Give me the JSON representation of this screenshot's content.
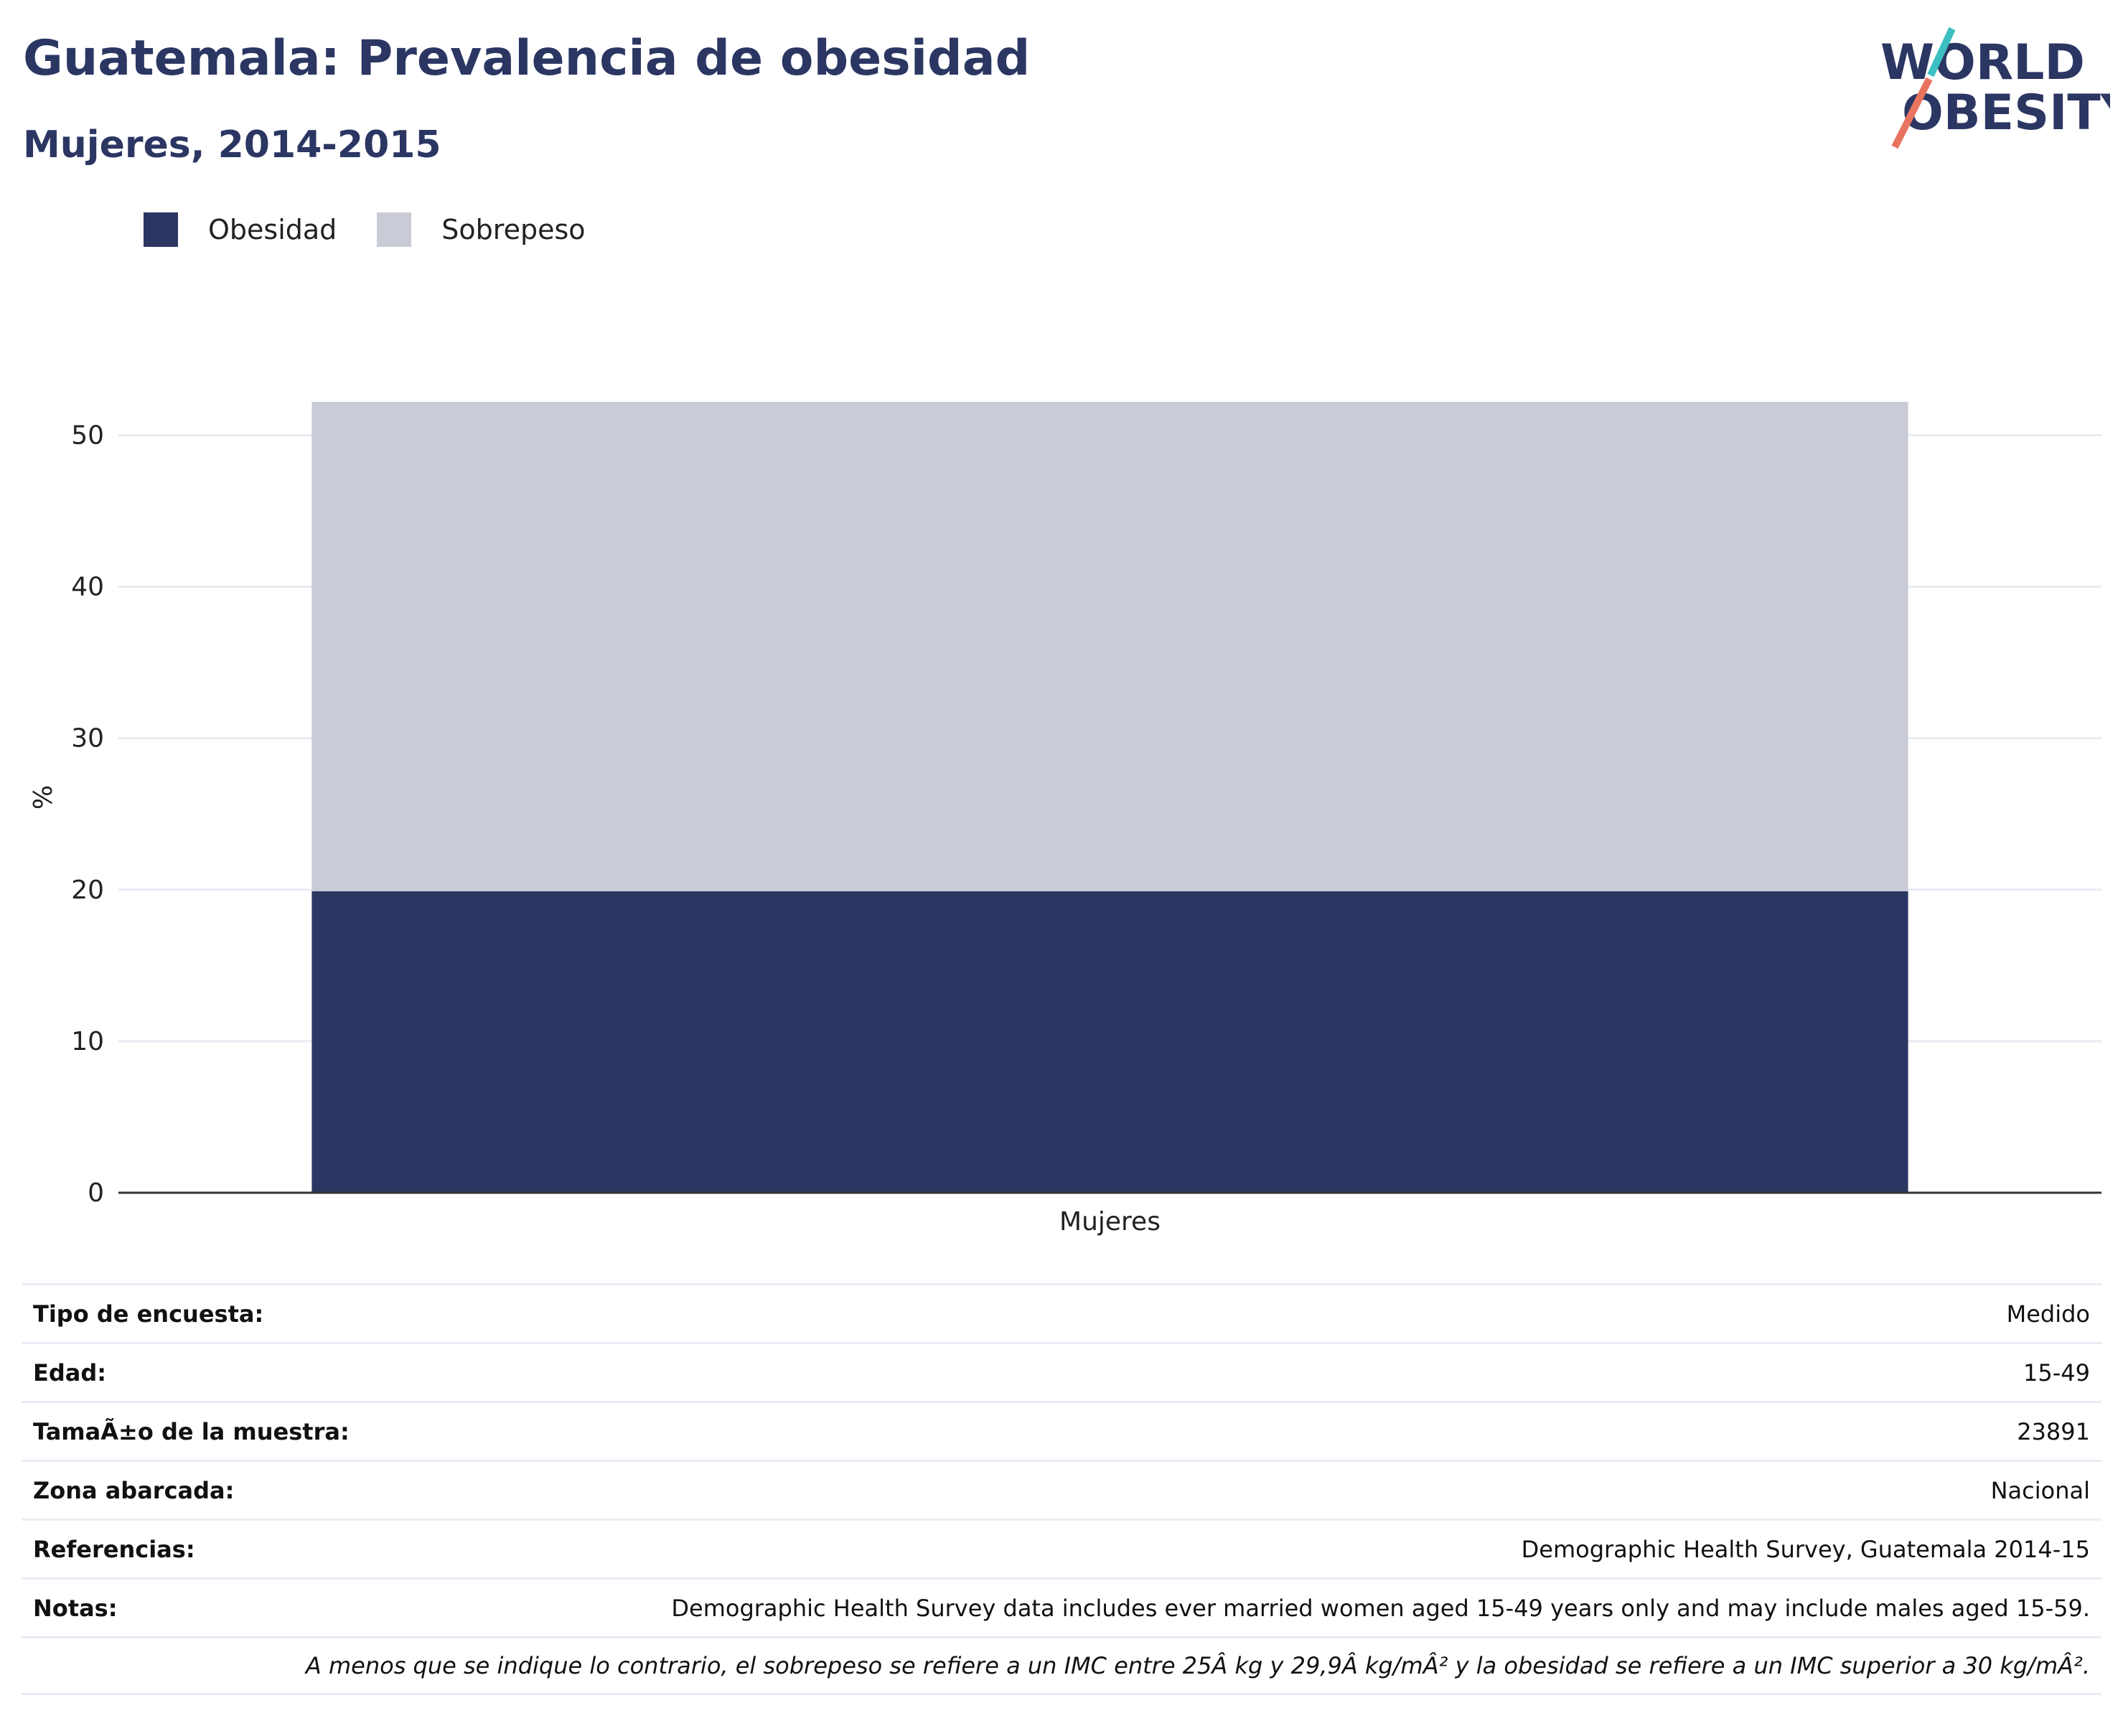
{
  "header": {
    "title": "Guatemala: Prevalencia de obesidad",
    "subtitle": "Mujeres, 2014-2015"
  },
  "logo": {
    "line1": "WORLD",
    "line2": "OBESITY",
    "icon": "world-obesity-logo"
  },
  "colors": {
    "obesidad": "#2b3663",
    "sobrepeso": "#c9ccd7",
    "title": "#2b3663",
    "grid": "#e9ecf2"
  },
  "chart_data": {
    "type": "bar",
    "stacked": true,
    "categories": [
      "Mujeres"
    ],
    "series": [
      {
        "name": "Obesidad",
        "values": [
          19.9
        ]
      },
      {
        "name": "Sobrepeso",
        "values": [
          32.3
        ]
      }
    ],
    "ylabel": "%",
    "xlabel": "",
    "ylim": [
      0,
      52.2
    ],
    "yticks": [
      0,
      10,
      20,
      30,
      40,
      50
    ],
    "grid": true,
    "legend_position": "top-left"
  },
  "legend": [
    {
      "label": "Obesidad",
      "color": "#2b3663"
    },
    {
      "label": "Sobrepeso",
      "color": "#c9ccd7"
    }
  ],
  "info": {
    "rows": [
      {
        "key": "Tipo de encuesta:",
        "value": "Medido"
      },
      {
        "key": "Edad:",
        "value": "15-49"
      },
      {
        "key": "TamaÃ±o de la muestra:",
        "value": "23891"
      },
      {
        "key": "Zona abarcada:",
        "value": "Nacional"
      },
      {
        "key": "Referencias:",
        "value": "Demographic Health Survey, Guatemala 2014-15"
      },
      {
        "key": "Notas:",
        "value": "Demographic Health Survey data includes ever married women aged 15-49 years only and may include males aged 15-59."
      }
    ],
    "footnote": "A menos que se indique lo contrario, el sobrepeso se refiere a un IMC entre 25Â kg y 29,9Â kg/mÂ² y la obesidad se refiere a un IMC superior a 30 kg/mÂ²."
  }
}
